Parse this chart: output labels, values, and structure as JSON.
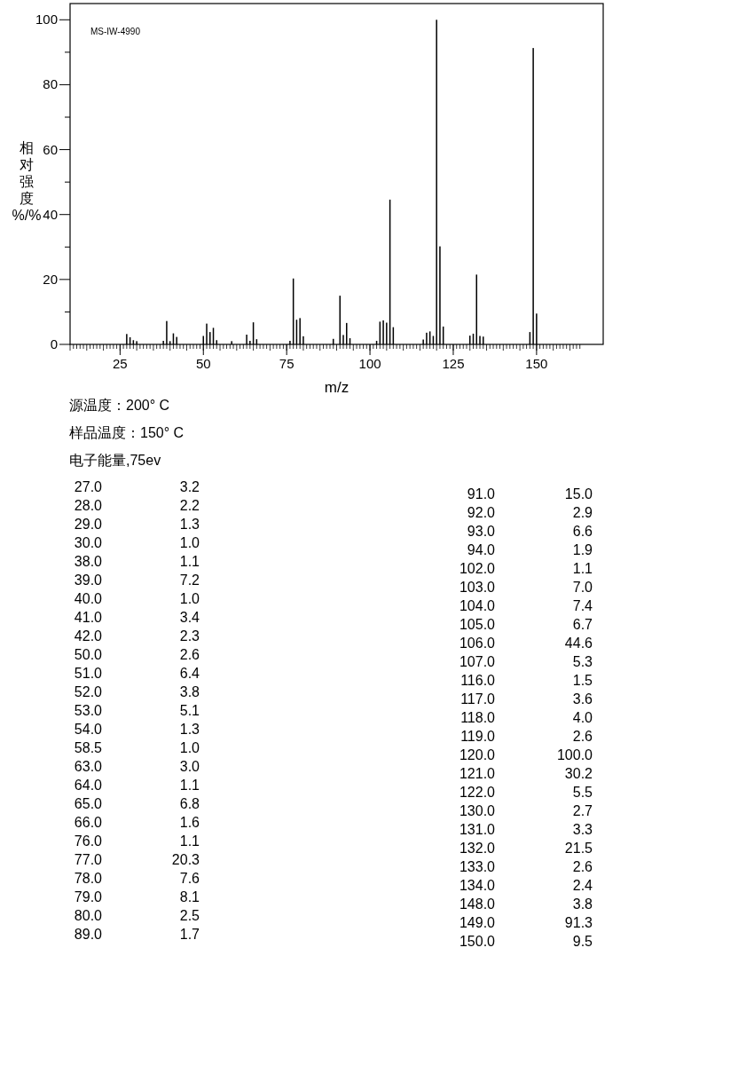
{
  "chart_data": {
    "type": "bar",
    "ylabel": "相对强度%/%",
    "xlabel": "m/z",
    "annotations": [
      "MS-IW-4990",
      "源温度：200° C",
      "样品温度：150° C",
      "电子能量,75ev",
      "27.0",
      "3.2",
      "28.0",
      "2.2",
      "29.0",
      "1.3",
      "30.0",
      "1.0",
      "38.0",
      "1.1",
      "39.0",
      "7.2",
      "40.0",
      "1.0",
      "41.0",
      "3.4",
      "42.0",
      "2.3",
      "50.0",
      "2.6",
      "51.0",
      "6.4",
      "52.0",
      "3.8",
      "53.0",
      "5.1",
      "54.0",
      "1.3",
      "58.5",
      "1.0",
      "63.0",
      "3.0",
      "64.0",
      "1.1",
      "65.0",
      "6.8",
      "66.0",
      "1.6",
      "76.0",
      "1.1",
      "77.0",
      "20.3",
      "78.0",
      "7.6",
      "79.0",
      "8.1",
      "80.0",
      "2.5",
      "89.0",
      "1.7",
      "91.0",
      "15.0",
      "92.0",
      "2.9",
      "93.0",
      "6.6",
      "94.0",
      "1.9",
      "102.0",
      "1.1",
      "103.0",
      "7.0",
      "104.0",
      "7.4",
      "105.0",
      "6.7",
      "106.0",
      "44.6",
      "107.0",
      "5.3",
      "116.0",
      "1.5",
      "117.0",
      "3.6",
      "118.0",
      "4.0",
      "119.0",
      "2.6",
      "120.0",
      "100.0",
      "121.0",
      "30.2",
      "122.0",
      "5.5",
      "130.0",
      "2.7",
      "131.0",
      "3.3",
      "132.0",
      "21.5",
      "133.0",
      "2.6",
      "134.0",
      "2.4",
      "148.0",
      "3.8",
      "149.0",
      "91.3",
      "150.0",
      "9.5"
    ],
    "x": [
      27,
      28,
      29,
      30,
      38,
      39,
      40,
      41,
      42,
      50,
      51,
      52,
      53,
      54,
      58.5,
      63,
      64,
      65,
      66,
      76,
      77,
      78,
      79,
      80,
      89,
      91,
      92,
      93,
      94,
      102,
      103,
      104,
      105,
      106,
      107,
      116,
      117,
      118,
      119,
      120,
      121,
      122,
      130,
      131,
      132,
      133,
      134,
      148,
      149,
      150
    ],
    "values": [
      3.2,
      2.2,
      1.3,
      1.0,
      1.1,
      7.2,
      1.0,
      3.4,
      2.3,
      2.6,
      6.4,
      3.8,
      5.1,
      1.3,
      1.0,
      3.0,
      1.1,
      6.8,
      1.6,
      1.1,
      20.3,
      7.6,
      8.1,
      2.5,
      1.7,
      15.0,
      2.9,
      6.6,
      1.9,
      1.1,
      7.0,
      7.4,
      6.7,
      44.6,
      5.3,
      1.5,
      3.6,
      4.0,
      2.6,
      100.0,
      30.2,
      5.5,
      2.7,
      3.3,
      21.5,
      2.6,
      2.4,
      3.8,
      91.3,
      9.5
    ],
    "color": "#000000",
    "xlim": [
      10,
      170
    ],
    "ylim": [
      0,
      105
    ],
    "xticks": [
      25,
      50,
      75,
      100,
      125,
      150
    ],
    "yticks": [
      0,
      20,
      40,
      60,
      80,
      100
    ]
  }
}
